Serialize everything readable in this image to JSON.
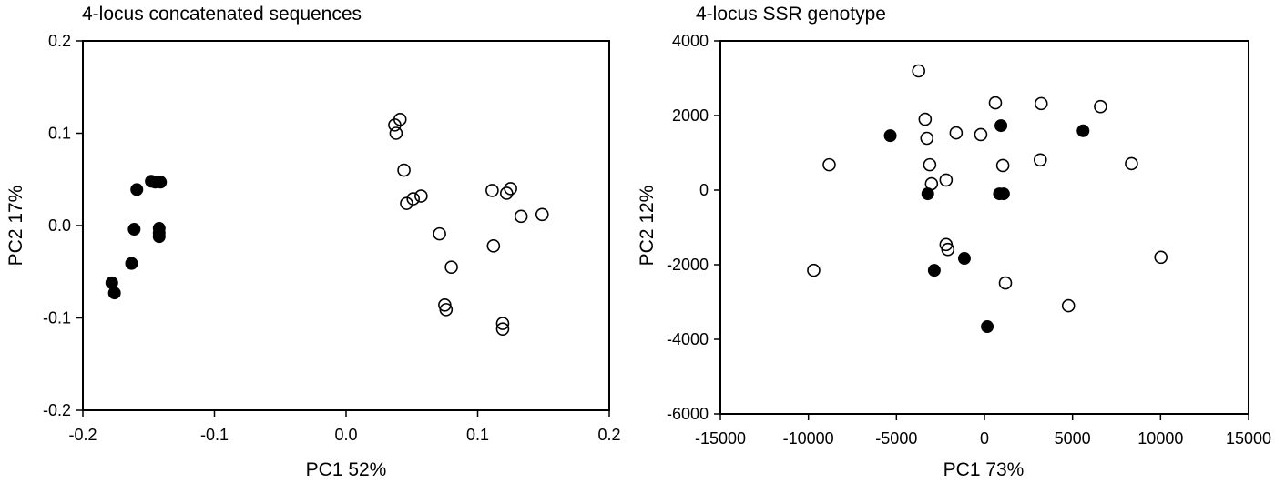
{
  "chart_data": [
    {
      "type": "scatter",
      "title": "4-locus concatenated sequences",
      "xlabel": "PC1  52%",
      "ylabel": "PC2  17%",
      "xlim": [
        -0.2,
        0.2
      ],
      "ylim": [
        -0.2,
        0.2
      ],
      "xticks": [
        -0.2,
        -0.1,
        0.0,
        0.1,
        0.2
      ],
      "xtick_labels": [
        "-0.2",
        "-0.1",
        "0.0",
        "0.1",
        "0.2"
      ],
      "yticks": [
        -0.2,
        -0.1,
        0.0,
        0.1,
        0.2
      ],
      "ytick_labels": [
        "-0.2",
        "-0.1",
        "0.0",
        "0.1",
        "0.2"
      ],
      "grid": false,
      "legend": null,
      "series": [
        {
          "name": "filled",
          "marker": "filled-circle",
          "color": "#000000",
          "points": [
            [
              -0.159,
              0.039
            ],
            [
              -0.148,
              0.048
            ],
            [
              -0.145,
              0.047
            ],
            [
              -0.141,
              0.047
            ],
            [
              -0.161,
              -0.004
            ],
            [
              -0.142,
              -0.003
            ],
            [
              -0.142,
              -0.008
            ],
            [
              -0.142,
              -0.012
            ],
            [
              -0.163,
              -0.041
            ],
            [
              -0.178,
              -0.062
            ],
            [
              -0.176,
              -0.073
            ]
          ]
        },
        {
          "name": "open",
          "marker": "open-circle",
          "color": "#000000",
          "points": [
            [
              0.041,
              0.115
            ],
            [
              0.037,
              0.109
            ],
            [
              0.038,
              0.1
            ],
            [
              0.044,
              0.06
            ],
            [
              0.057,
              0.032
            ],
            [
              0.051,
              0.029
            ],
            [
              0.046,
              0.024
            ],
            [
              0.111,
              0.038
            ],
            [
              0.125,
              0.04
            ],
            [
              0.122,
              0.035
            ],
            [
              0.133,
              0.01
            ],
            [
              0.149,
              0.012
            ],
            [
              0.071,
              -0.009
            ],
            [
              0.112,
              -0.022
            ],
            [
              0.08,
              -0.045
            ],
            [
              0.075,
              -0.086
            ],
            [
              0.076,
              -0.091
            ],
            [
              0.119,
              -0.106
            ],
            [
              0.119,
              -0.112
            ]
          ]
        }
      ]
    },
    {
      "type": "scatter",
      "title": "4-locus SSR genotype",
      "xlabel": "PC1  73%",
      "ylabel": "PC2  12%",
      "xlim": [
        -15000,
        15000
      ],
      "ylim": [
        -6000,
        4000
      ],
      "xticks": [
        -15000,
        -10000,
        -5000,
        0,
        5000,
        10000,
        15000
      ],
      "xtick_labels": [
        "-15000",
        "-10000",
        "-5000",
        "0",
        "5000",
        "10000",
        "15000"
      ],
      "yticks": [
        -6000,
        -4000,
        -2000,
        0,
        2000,
        4000
      ],
      "ytick_labels": [
        "-6000",
        "-4000",
        "-2000",
        "0",
        "2000",
        "4000"
      ],
      "grid": false,
      "legend": null,
      "series": [
        {
          "name": "filled",
          "marker": "filled-circle",
          "color": "#000000",
          "points": [
            [
              -5350,
              1460
            ],
            [
              935,
              1730
            ],
            [
              5600,
              1590
            ],
            [
              -3220,
              -100
            ],
            [
              850,
              -100
            ],
            [
              1080,
              -100
            ],
            [
              -2850,
              -2150
            ],
            [
              -1140,
              -1830
            ],
            [
              160,
              -3660
            ]
          ]
        },
        {
          "name": "open",
          "marker": "open-circle",
          "color": "#000000",
          "points": [
            [
              -3740,
              3195
            ],
            [
              620,
              2340
            ],
            [
              3220,
              2320
            ],
            [
              6590,
              2240
            ],
            [
              -3370,
              1900
            ],
            [
              -3270,
              1390
            ],
            [
              -1610,
              1535
            ],
            [
              -210,
              1490
            ],
            [
              -8820,
              680
            ],
            [
              -3110,
              680
            ],
            [
              1040,
              660
            ],
            [
              3170,
              810
            ],
            [
              8350,
              710
            ],
            [
              -3010,
              170
            ],
            [
              -2180,
              270
            ],
            [
              -2180,
              -1460
            ],
            [
              -2080,
              -1590
            ],
            [
              -9700,
              -2150
            ],
            [
              10020,
              -1800
            ],
            [
              1190,
              -2490
            ],
            [
              4770,
              -3100
            ]
          ]
        }
      ]
    }
  ]
}
